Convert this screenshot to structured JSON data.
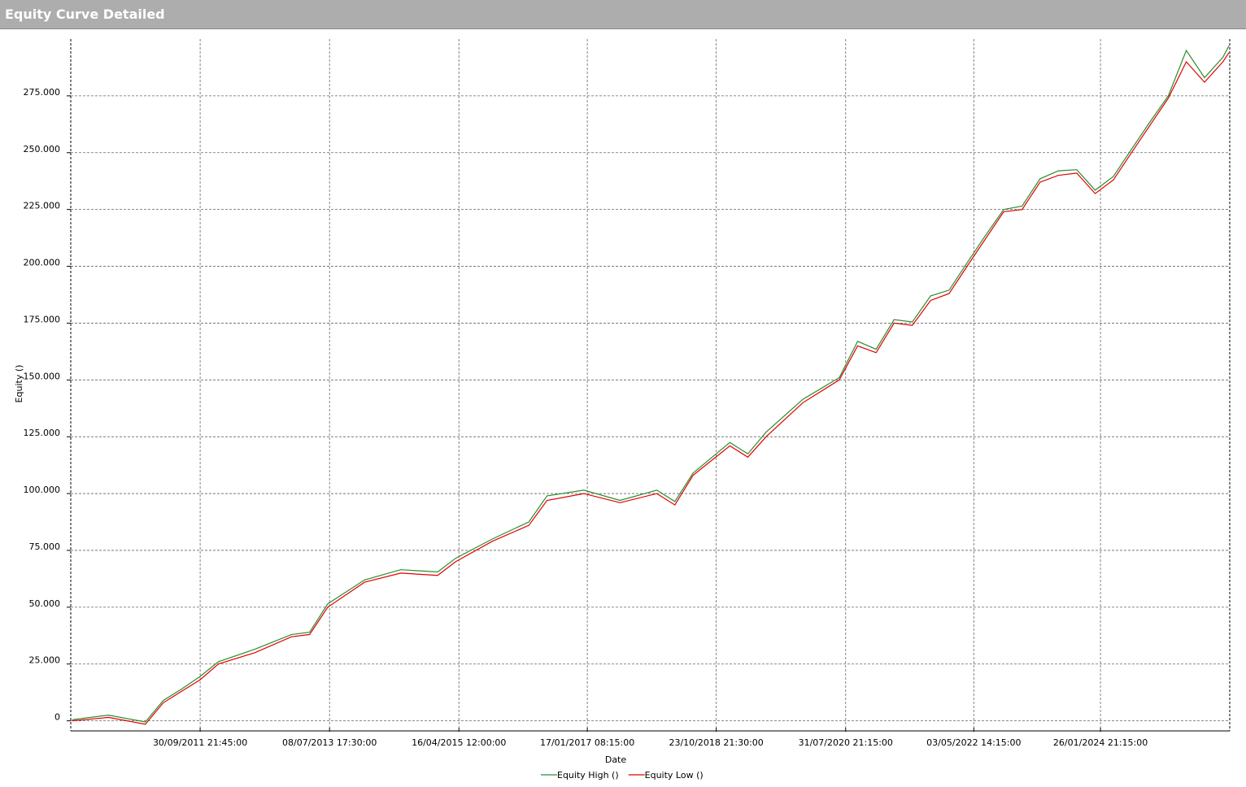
{
  "panel_title": "Equity Curve Detailed",
  "chart_data": {
    "type": "line",
    "x_label": "Date",
    "y_label": "Equity ()",
    "x": [
      "2009-12-30",
      "2010-06-30",
      "2010-12-31",
      "2011-03-31",
      "2011-06-30",
      "2011-09-30",
      "2011-12-31",
      "2012-06-30",
      "2012-12-31",
      "2013-03-31",
      "2013-06-30",
      "2013-12-31",
      "2014-06-30",
      "2014-12-31",
      "2015-03-31",
      "2015-09-30",
      "2016-03-31",
      "2016-06-30",
      "2016-12-31",
      "2017-06-30",
      "2017-12-31",
      "2018-03-31",
      "2018-06-30",
      "2018-12-31",
      "2019-03-31",
      "2019-06-30",
      "2019-12-31",
      "2020-06-30",
      "2020-09-30",
      "2020-12-31",
      "2021-03-31",
      "2021-06-30",
      "2021-09-30",
      "2021-12-31",
      "2022-03-31",
      "2022-06-30",
      "2022-09-30",
      "2022-12-31",
      "2023-03-31",
      "2023-06-30",
      "2023-09-30",
      "2023-12-31",
      "2024-03-31",
      "2024-06-30",
      "2024-09-30",
      "2024-12-31",
      "2025-03-31",
      "2025-06-30",
      "2025-09-30",
      "2025-10-30"
    ],
    "series": [
      {
        "name": "Equity High ()",
        "color": "#2e8b2e",
        "values": [
          500,
          2500,
          -500,
          9000,
          14000,
          19500,
          26000,
          31500,
          38000,
          39000,
          51500,
          62000,
          66500,
          65500,
          71500,
          80000,
          87500,
          99000,
          101500,
          97000,
          101500,
          96500,
          109000,
          122500,
          117500,
          127000,
          141500,
          151000,
          167000,
          163500,
          176500,
          175500,
          187000,
          189500,
          201500,
          213500,
          225000,
          226500,
          238500,
          242000,
          242500,
          233500,
          239500,
          251500,
          263500,
          275000,
          295000,
          283000,
          292000,
          297000
        ]
      },
      {
        "name": "Equity Low ()",
        "color": "#e00000",
        "values": [
          0,
          1500,
          -1500,
          8000,
          13000,
          18000,
          25000,
          30000,
          37000,
          38000,
          50000,
          61000,
          65000,
          64000,
          70000,
          79000,
          86000,
          97000,
          100000,
          96000,
          100000,
          95000,
          108000,
          121000,
          116000,
          125000,
          140000,
          150000,
          165000,
          162000,
          175000,
          174000,
          185000,
          188000,
          200000,
          212000,
          224000,
          225000,
          237000,
          240000,
          241000,
          232000,
          238000,
          250000,
          262000,
          274000,
          290000,
          281000,
          290000,
          294000
        ]
      }
    ],
    "xlim": [
      "2009-12-23T00:00",
      "2025-11-03T00:00"
    ],
    "xticks": [
      {
        "value": "2011-09-30T21:45",
        "label": "30/09/2011 21:45:00"
      },
      {
        "value": "2013-07-08T17:30",
        "label": "08/07/2013 17:30:00"
      },
      {
        "value": "2015-04-16T12:00",
        "label": "16/04/2015 12:00:00"
      },
      {
        "value": "2017-01-17T08:15",
        "label": "17/01/2017 08:15:00"
      },
      {
        "value": "2018-10-23T21:30",
        "label": "23/10/2018 21:30:00"
      },
      {
        "value": "2020-07-31T21:15",
        "label": "31/07/2020 21:15:00"
      },
      {
        "value": "2022-05-03T14:15",
        "label": "03/05/2022 14:15:00"
      },
      {
        "value": "2024-01-26T21:15",
        "label": "26/01/2024 21:15:00"
      }
    ],
    "ylim": [
      -3000,
      300000
    ],
    "yticks": [
      0,
      {
        "value": 25000,
        "label": "25.000"
      },
      {
        "value": 50000,
        "label": "50.000"
      },
      {
        "value": 75000,
        "label": "75.000"
      },
      {
        "value": 100000,
        "label": "100.000"
      },
      {
        "value": 125000,
        "label": "125.000"
      },
      {
        "value": 150000,
        "label": "150.000"
      },
      {
        "value": 175000,
        "label": "175.000"
      },
      {
        "value": 200000,
        "label": "200.000"
      },
      {
        "value": 225000,
        "label": "225.000"
      },
      {
        "value": 250000,
        "label": "250.000"
      },
      {
        "value": 275000,
        "label": "275.000"
      }
    ],
    "grid": true,
    "legend": "bottom"
  }
}
